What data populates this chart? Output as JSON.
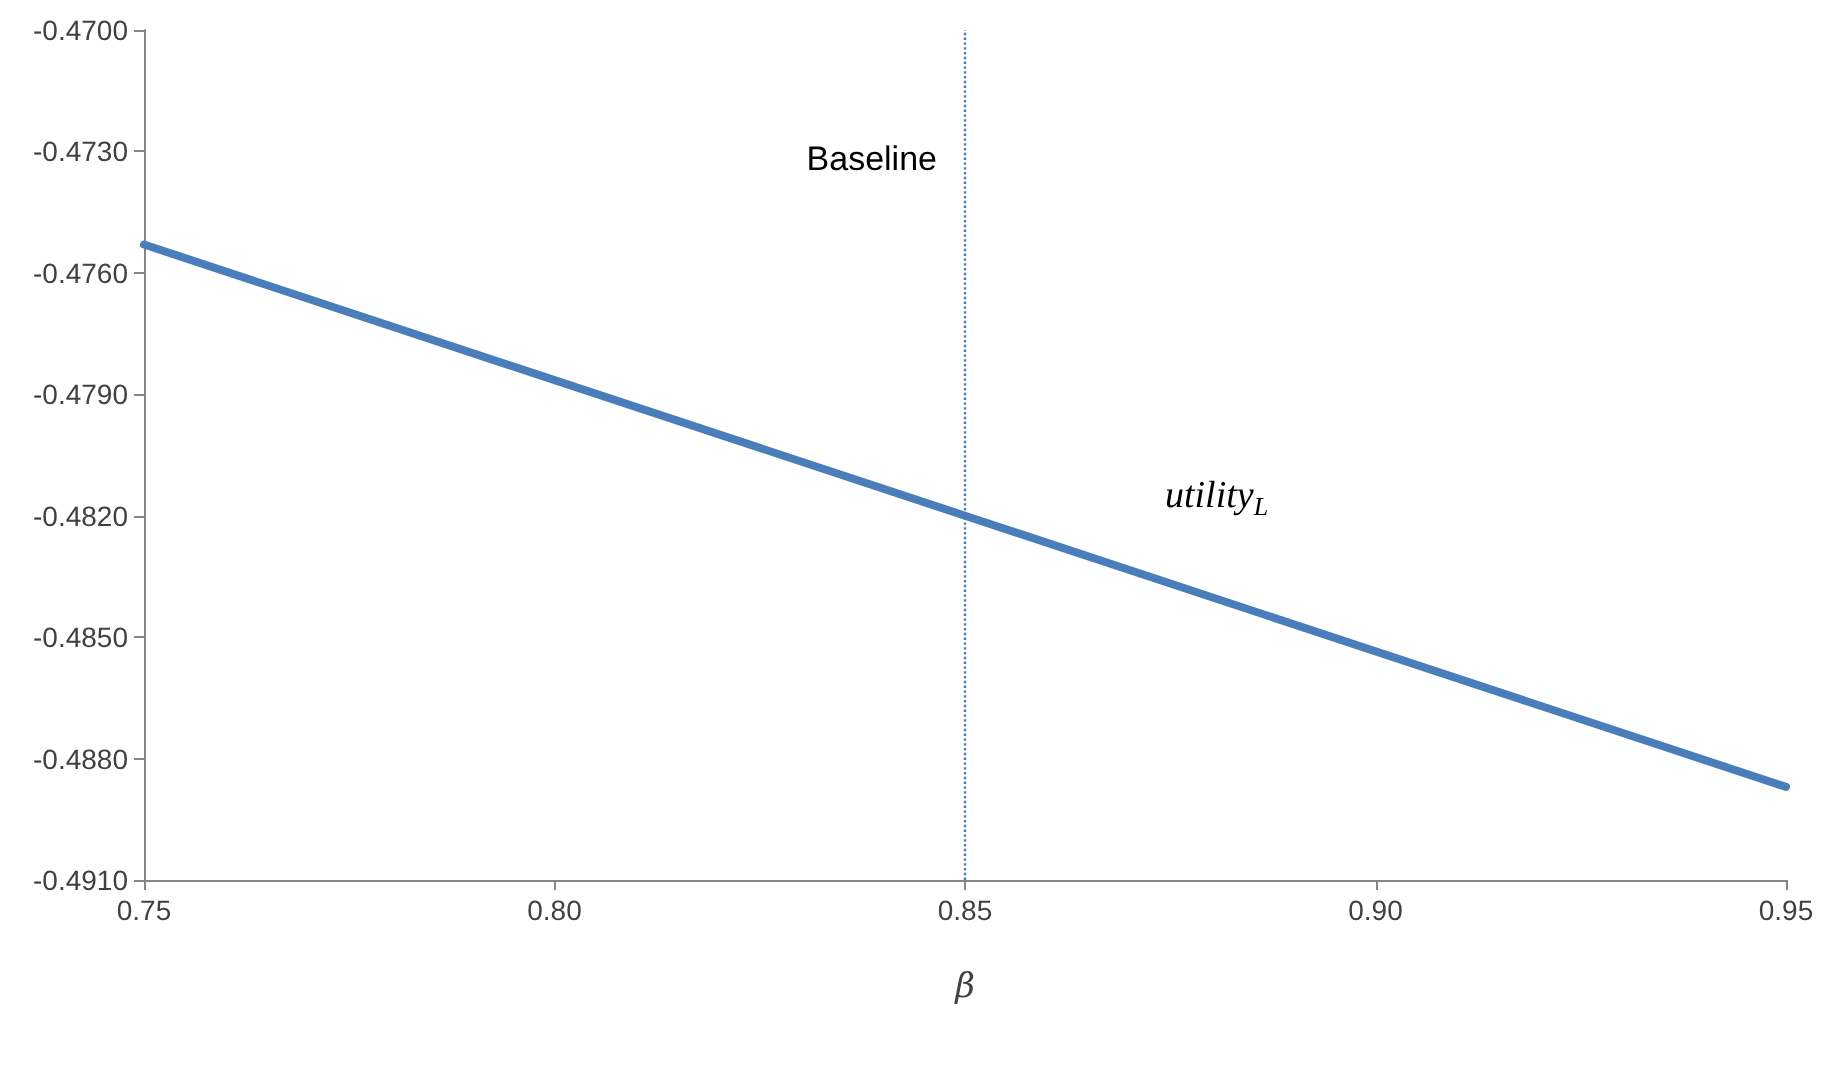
{
  "chart_data": {
    "type": "line",
    "xlabel": "β",
    "x": [
      0.75,
      0.85,
      0.95
    ],
    "series": [
      {
        "name": "utility$_{L}$",
        "color": "#4a7ebb",
        "values": [
          -0.4753,
          -0.482,
          -0.4887
        ]
      }
    ],
    "xlim": [
      0.75,
      0.95
    ],
    "xticks": [
      {
        "value": 0.75,
        "label": "0.75"
      },
      {
        "value": 0.8,
        "label": "0.80"
      },
      {
        "value": 0.85,
        "label": "0.85"
      },
      {
        "value": 0.9,
        "label": "0.90"
      },
      {
        "value": 0.95,
        "label": "0.95"
      }
    ],
    "ylim": [
      -0.491,
      -0.47
    ],
    "yticks": [
      {
        "value": -0.491,
        "label": "-0.4910"
      },
      {
        "value": -0.488,
        "label": "-0.4880"
      },
      {
        "value": -0.485,
        "label": "-0.4850"
      },
      {
        "value": -0.482,
        "label": "-0.4820"
      },
      {
        "value": -0.479,
        "label": "-0.4790"
      },
      {
        "value": -0.476,
        "label": "-0.4760"
      },
      {
        "value": -0.473,
        "label": "-0.4730"
      },
      {
        "value": -0.47,
        "label": "-0.4700"
      }
    ],
    "ref_lines": [
      {
        "axis": "x",
        "value": 0.85,
        "label": "Baseline",
        "color": "#4a7ebb",
        "line_style": "dotted"
      }
    ],
    "grid": false,
    "legend": false,
    "marker": "none",
    "line_style": "solid"
  }
}
